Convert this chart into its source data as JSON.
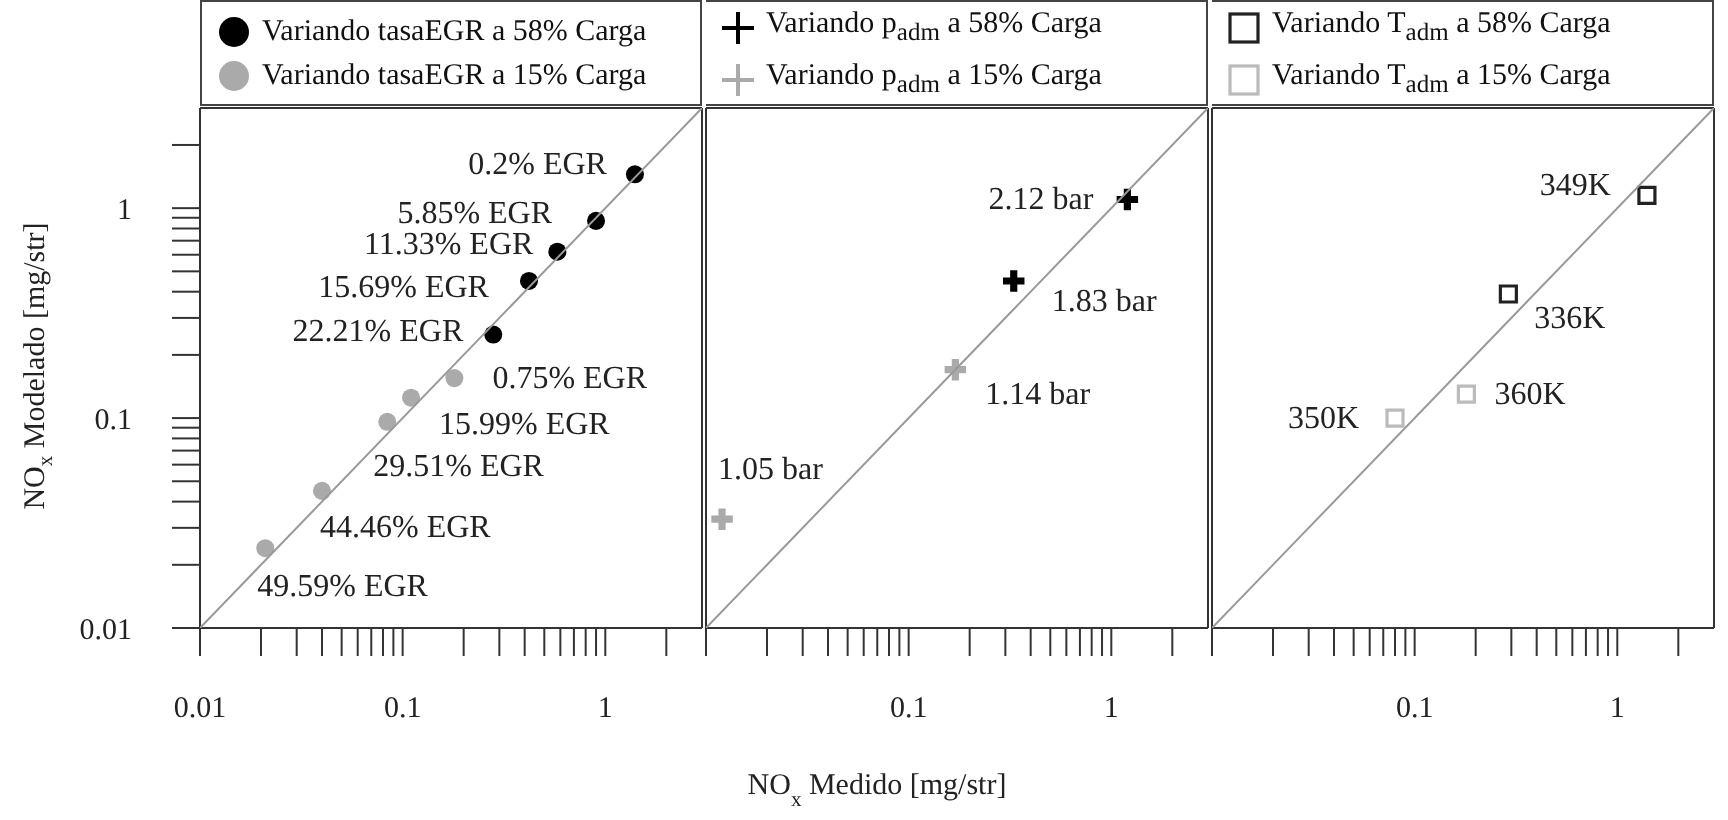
{
  "chart_data": [
    {
      "type": "scatter",
      "ylabel": "NO$_{x}$ Modelado [mg/str]",
      "log": "xy",
      "legend": "top",
      "xlim": [
        0.01,
        3
      ],
      "ylim": [
        0.01,
        3
      ],
      "xticks": [
        0.01,
        {
          "value": 0.02,
          "label": null
        },
        {
          "value": 0.03,
          "label": null
        },
        {
          "value": 0.04,
          "label": null
        },
        {
          "value": 0.05,
          "label": null
        },
        {
          "value": 0.06,
          "label": null
        },
        {
          "value": 0.07,
          "label": null
        },
        {
          "value": 0.08,
          "label": null
        },
        {
          "value": 0.09,
          "label": null
        },
        0.1,
        {
          "value": 0.2,
          "label": null
        },
        {
          "value": 0.3,
          "label": null
        },
        {
          "value": 0.4,
          "label": null
        },
        {
          "value": 0.5,
          "label": null
        },
        {
          "value": 0.6,
          "label": null
        },
        {
          "value": 0.7,
          "label": null
        },
        {
          "value": 0.8,
          "label": null
        },
        {
          "value": 0.9,
          "label": null
        },
        1,
        {
          "value": 2,
          "label": null
        }
      ],
      "yticks": [
        0.01,
        {
          "value": 0.02,
          "label": null
        },
        {
          "value": 0.03,
          "label": null
        },
        {
          "value": 0.04,
          "label": null
        },
        {
          "value": 0.05,
          "label": null
        },
        {
          "value": 0.06,
          "label": null
        },
        {
          "value": 0.07,
          "label": null
        },
        {
          "value": 0.08,
          "label": null
        },
        {
          "value": 0.09,
          "label": null
        },
        0.1,
        {
          "value": 0.2,
          "label": null
        },
        {
          "value": 0.3,
          "label": null
        },
        {
          "value": 0.4,
          "label": null
        },
        {
          "value": 0.5,
          "label": null
        },
        {
          "value": 0.6,
          "label": null
        },
        {
          "value": 0.7,
          "label": null
        },
        {
          "value": 0.8,
          "label": null
        },
        {
          "value": 0.9,
          "label": null
        },
        1,
        {
          "value": 2,
          "label": null
        }
      ],
      "series": [
        {
          "name": "Variando tasaEGR a 58% Carga",
          "color": "#000000",
          "marker": "circle",
          "x": [
            1.4,
            0.9,
            0.58,
            0.42,
            0.28
          ],
          "values": [
            1.45,
            0.87,
            0.62,
            0.45,
            0.25
          ]
        },
        {
          "name": "Variando tasaEGR a 15% Carga",
          "color": "#aaaaaa",
          "marker": "circle",
          "x": [
            0.18,
            0.11,
            0.084,
            0.04,
            0.021
          ],
          "values": [
            0.155,
            0.125,
            0.096,
            0.045,
            0.024
          ]
        },
        {
          "type": "line",
          "color": "#999999",
          "marker": "none",
          "x": [
            0.01,
            3
          ],
          "values": [
            0.01,
            3
          ]
        }
      ],
      "annotations": [
        {
          "text": "0.2% EGR",
          "x": 1.4,
          "y": 1.45
        },
        {
          "text": "5.85% EGR",
          "x": 0.9,
          "y": 0.87
        },
        {
          "text": "11.33% EGR",
          "x": 0.58,
          "y": 0.62
        },
        {
          "text": "15.69% EGR",
          "x": 0.42,
          "y": 0.45
        },
        {
          "text": "22.21% EGR",
          "x": 0.28,
          "y": 0.25
        },
        {
          "text": "0.75% EGR",
          "x": 0.18,
          "y": 0.155
        },
        {
          "text": "15.99% EGR",
          "x": 0.11,
          "y": 0.125
        },
        {
          "text": "29.51% EGR",
          "x": 0.084,
          "y": 0.096
        },
        {
          "text": "44.46% EGR",
          "x": 0.04,
          "y": 0.045
        },
        {
          "text": "49.59% EGR",
          "x": 0.021,
          "y": 0.024
        }
      ]
    },
    {
      "type": "scatter",
      "xlabel": "NO$_{x}$ Medido [mg/str]",
      "log": "xy",
      "legend": "top",
      "tick_labels": "x",
      "xlim": [
        0.01,
        3
      ],
      "ylim": [
        0.01,
        3
      ],
      "xticks": [
        {
          "value": 0.01,
          "label": null
        },
        {
          "value": 0.02,
          "label": null
        },
        {
          "value": 0.03,
          "label": null
        },
        {
          "value": 0.04,
          "label": null
        },
        {
          "value": 0.05,
          "label": null
        },
        {
          "value": 0.06,
          "label": null
        },
        {
          "value": 0.07,
          "label": null
        },
        {
          "value": 0.08,
          "label": null
        },
        {
          "value": 0.09,
          "label": null
        },
        0.1,
        {
          "value": 0.2,
          "label": null
        },
        {
          "value": 0.3,
          "label": null
        },
        {
          "value": 0.4,
          "label": null
        },
        {
          "value": 0.5,
          "label": null
        },
        {
          "value": 0.6,
          "label": null
        },
        {
          "value": 0.7,
          "label": null
        },
        {
          "value": 0.8,
          "label": null
        },
        {
          "value": 0.9,
          "label": null
        },
        1,
        {
          "value": 2,
          "label": null
        }
      ],
      "series": [
        {
          "name": "Variando p$_{adm}$ a 58% Carga",
          "color": "#000000",
          "marker": "cross",
          "x": [
            1.2,
            0.33
          ],
          "values": [
            1.1,
            0.45
          ]
        },
        {
          "name": "Variando p$_{adm}$ a 15% Carga",
          "color": "#aaaaaa",
          "marker": "cross",
          "x": [
            0.17,
            0.012
          ],
          "values": [
            0.17,
            0.033
          ]
        },
        {
          "type": "line",
          "color": "#999999",
          "marker": "none",
          "x": [
            0.01,
            3
          ],
          "values": [
            0.01,
            3
          ]
        }
      ],
      "annotations": [
        {
          "text": "2.12 bar",
          "x": 1.2,
          "y": 1.1
        },
        {
          "text": "1.83 bar",
          "x": 0.33,
          "y": 0.45
        },
        {
          "text": "1.14 bar",
          "x": 0.17,
          "y": 0.17
        },
        {
          "text": "1.05 bar",
          "x": 0.012,
          "y": 0.033
        }
      ]
    },
    {
      "type": "scatter",
      "log": "xy",
      "legend": "top",
      "tick_labels": "x",
      "xlim": [
        0.01,
        3
      ],
      "ylim": [
        0.01,
        3
      ],
      "xticks": [
        {
          "value": 0.01,
          "label": null
        },
        {
          "value": 0.02,
          "label": null
        },
        {
          "value": 0.03,
          "label": null
        },
        {
          "value": 0.04,
          "label": null
        },
        {
          "value": 0.05,
          "label": null
        },
        {
          "value": 0.06,
          "label": null
        },
        {
          "value": 0.07,
          "label": null
        },
        {
          "value": 0.08,
          "label": null
        },
        {
          "value": 0.09,
          "label": null
        },
        0.1,
        {
          "value": 0.2,
          "label": null
        },
        {
          "value": 0.3,
          "label": null
        },
        {
          "value": 0.4,
          "label": null
        },
        {
          "value": 0.5,
          "label": null
        },
        {
          "value": 0.6,
          "label": null
        },
        {
          "value": 0.7,
          "label": null
        },
        {
          "value": 0.8,
          "label": null
        },
        {
          "value": 0.9,
          "label": null
        },
        1,
        {
          "value": 2,
          "label": null
        }
      ],
      "series": [
        {
          "name": "Variando T$_{adm}$ a 58% Carga",
          "color": "#222222",
          "marker": "square",
          "x": [
            1.4,
            0.29
          ],
          "values": [
            1.15,
            0.39
          ]
        },
        {
          "name": "Variando T$_{adm}$ a 15% Carga",
          "color": "#bbbbbb",
          "marker": "square",
          "x": [
            0.18,
            0.08
          ],
          "values": [
            0.13,
            0.1
          ]
        },
        {
          "type": "line",
          "color": "#999999",
          "marker": "none",
          "x": [
            0.01,
            3
          ],
          "values": [
            0.01,
            3
          ]
        }
      ],
      "annotations": [
        {
          "text": "349K",
          "x": 1.4,
          "y": 1.15
        },
        {
          "text": "336K",
          "x": 0.29,
          "y": 0.39
        },
        {
          "text": "360K",
          "x": 0.18,
          "y": 0.13
        },
        {
          "text": "350K",
          "x": 0.08,
          "y": 0.1
        }
      ]
    }
  ]
}
